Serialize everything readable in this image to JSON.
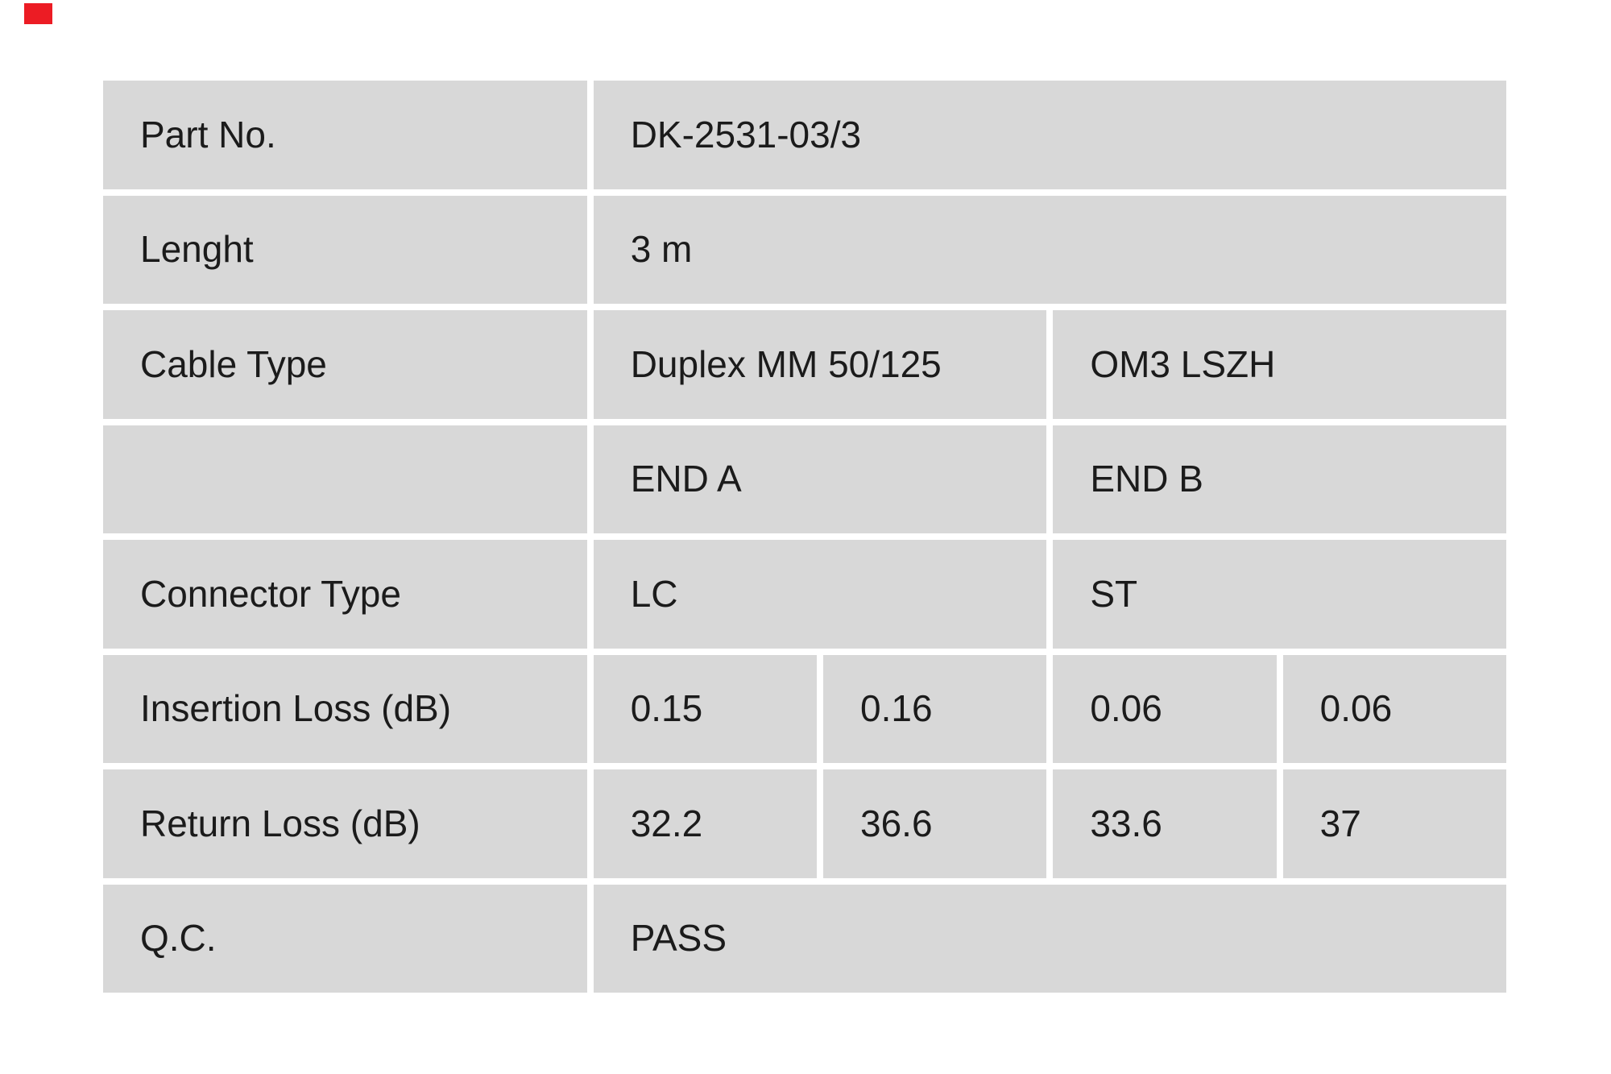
{
  "page": {
    "background_color": "#ffffff",
    "cell_background_color": "#d8d8d8",
    "text_color": "#1b1b1b",
    "accent_red": "#ec1c24"
  },
  "table": {
    "rows": [
      {
        "label": "Part No.",
        "values": [
          {
            "text": "DK-2531-03/3"
          }
        ]
      },
      {
        "label": "Lenght",
        "values": [
          {
            "text": "3 m"
          }
        ]
      },
      {
        "label": "Cable Type",
        "values": [
          {
            "text": "Duplex MM 50/125"
          },
          {
            "text": "OM3 LSZH"
          }
        ]
      },
      {
        "label": "",
        "values": [
          {
            "text": "END A"
          },
          {
            "text": "END B"
          }
        ]
      },
      {
        "label": "Connector Type",
        "values": [
          {
            "text": "LC"
          },
          {
            "text": "ST"
          }
        ]
      },
      {
        "label": "Insertion Loss (dB)",
        "values": [
          {
            "text": "0.15"
          },
          {
            "text": "0.16"
          },
          {
            "text": "0.06"
          },
          {
            "text": "0.06"
          }
        ]
      },
      {
        "label": "Return Loss (dB)",
        "values": [
          {
            "text": "32.2"
          },
          {
            "text": "36.6"
          },
          {
            "text": "33.6"
          },
          {
            "text": "37"
          }
        ]
      },
      {
        "label": "Q.C.",
        "values": [
          {
            "text": "PASS"
          }
        ]
      }
    ]
  }
}
